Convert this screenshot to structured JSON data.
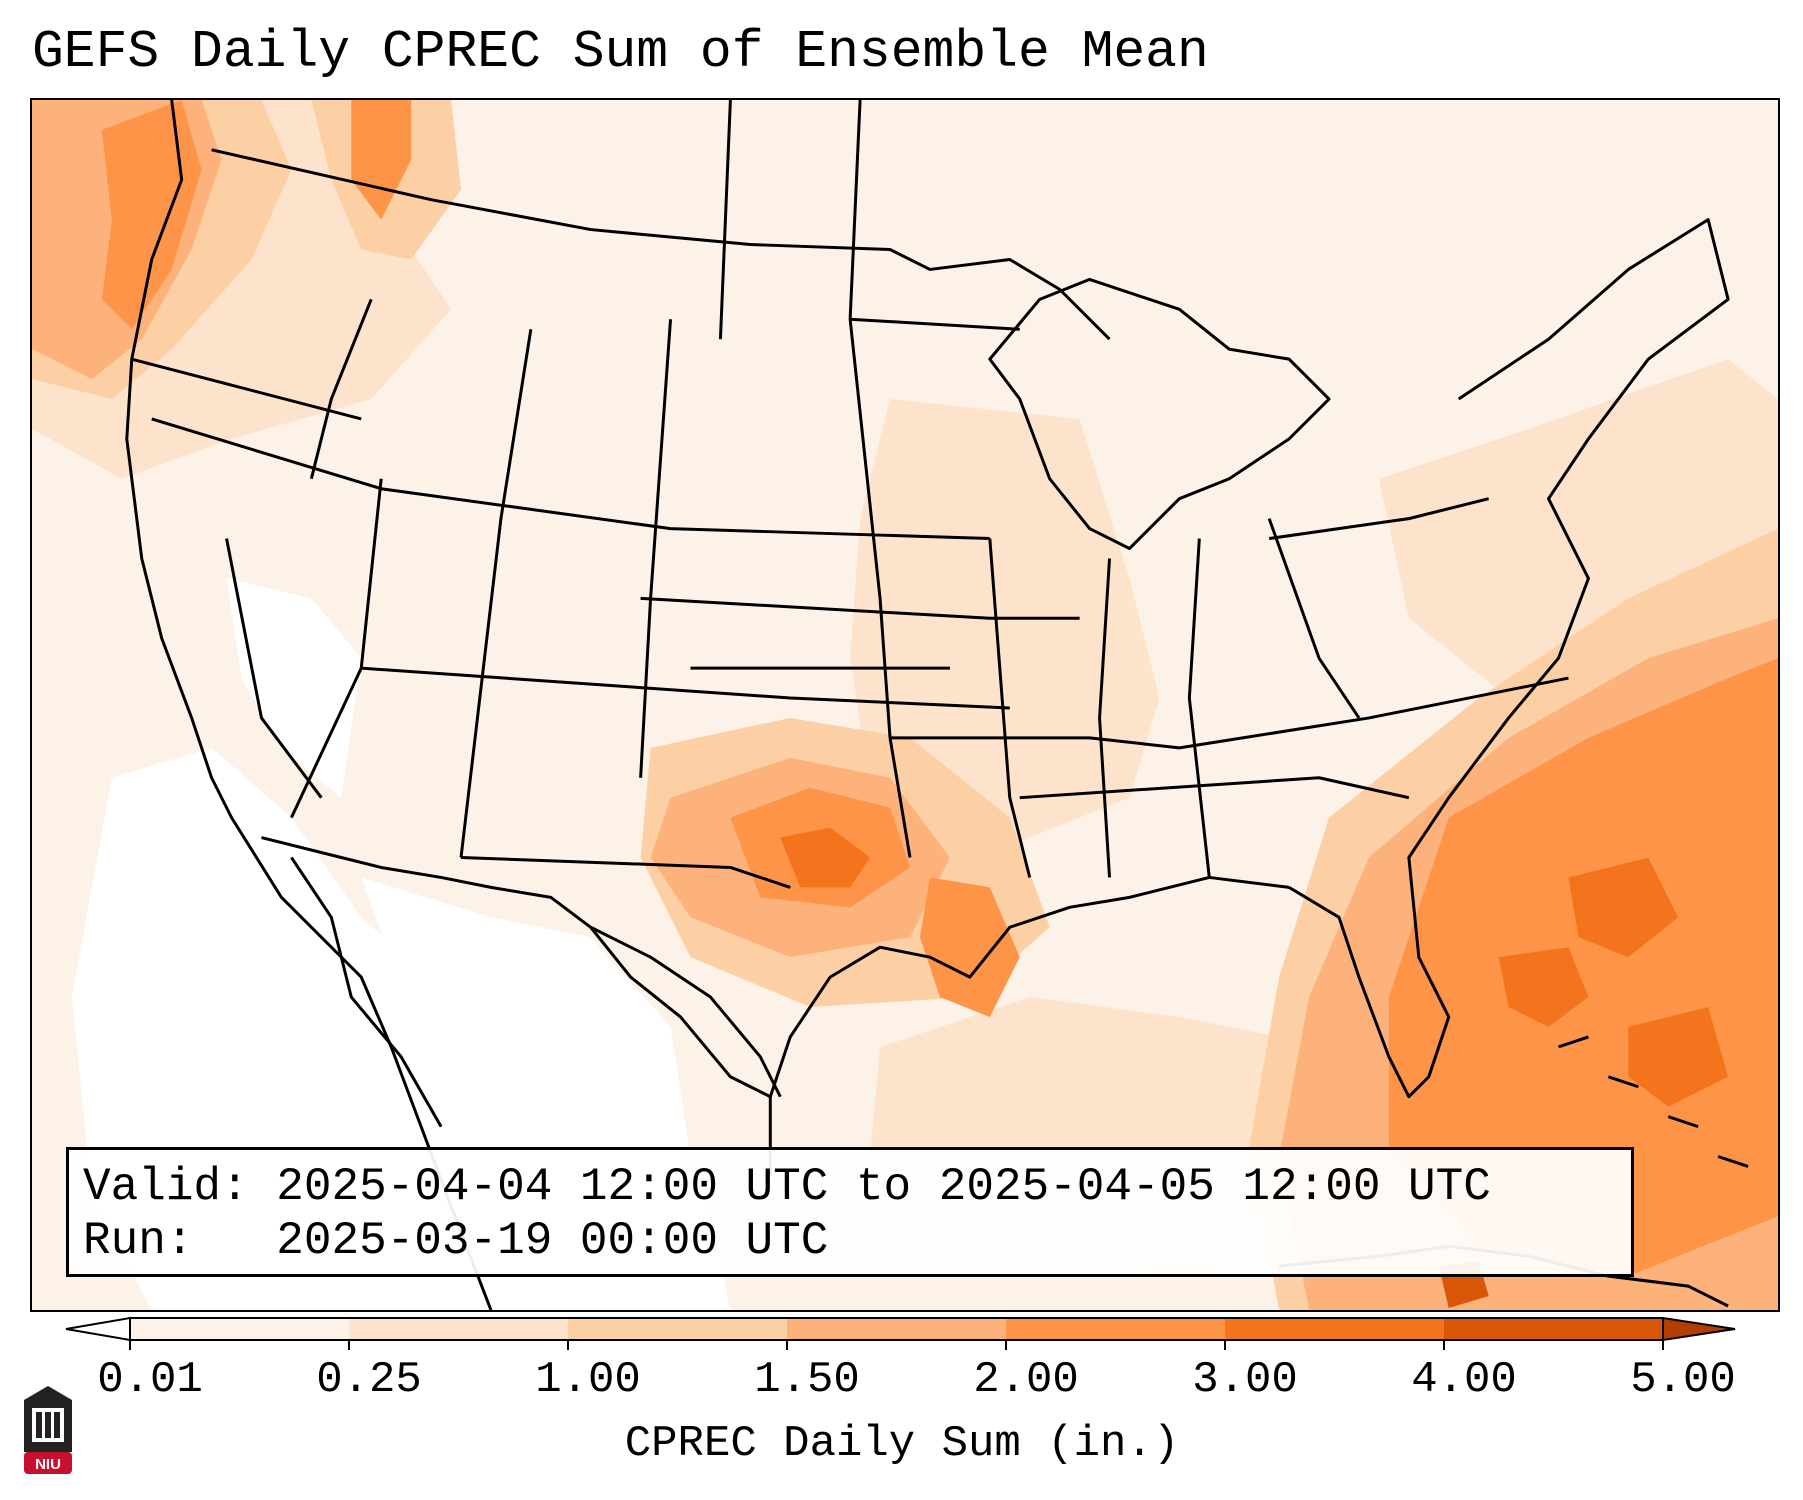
{
  "title": "GEFS Daily CPREC Sum of Ensemble Mean",
  "info": {
    "valid_label": "Valid:",
    "valid_value": "2025-04-04 12:00 UTC to 2025-04-05 12:00 UTC",
    "run_label": "Run:",
    "run_value": "2025-03-19 00:00 UTC"
  },
  "colorbar": {
    "title": "CPREC Daily Sum (in.)",
    "ticks": [
      "0.01",
      "0.25",
      "1.00",
      "1.50",
      "2.00",
      "3.00",
      "4.00",
      "5.00"
    ],
    "colors": [
      "#fdf2e7",
      "#fde3cc",
      "#fdcfa5",
      "#fcb27a",
      "#fd9448",
      "#f3741c",
      "#d95508"
    ],
    "extend_low_color": "#ffffff",
    "extend_high_color": "#b33d02"
  },
  "map": {
    "region": "Continental United States",
    "border_color": "#000000",
    "heavy_areas": [
      "Pacific Northwest coast",
      "Oklahoma / North Texas",
      "Louisiana",
      "Western Atlantic / Florida",
      "Bahamas / Cuba"
    ]
  },
  "logo": {
    "text": "NIU",
    "color": "#c8102e"
  }
}
